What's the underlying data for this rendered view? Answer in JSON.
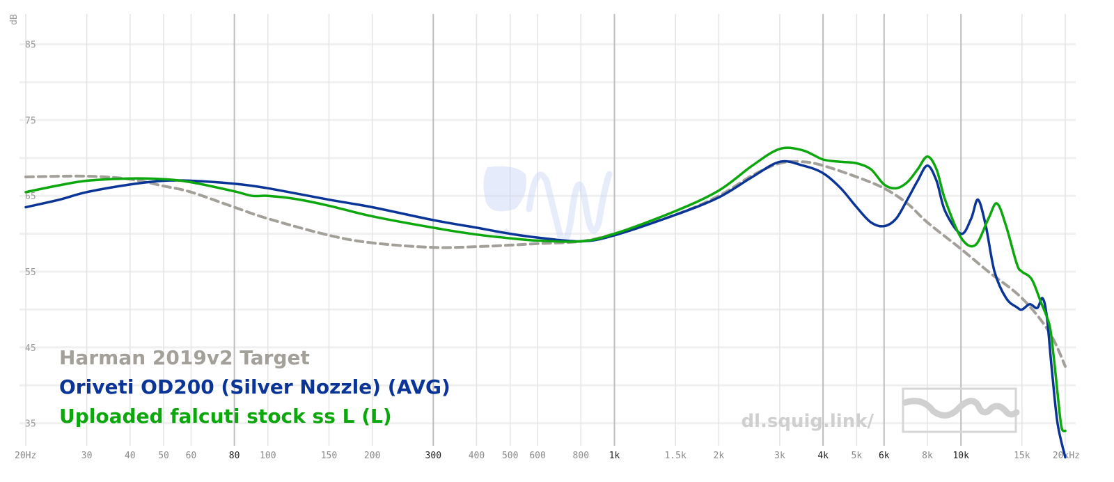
{
  "chart_data": {
    "type": "line",
    "x_scale": "log",
    "xlim": [
      20,
      20000
    ],
    "ylim": [
      30,
      88
    ],
    "ylabel": "dB",
    "grid": true,
    "legend_position": "bottom-left",
    "y_ticks": [
      85,
      75,
      65,
      55,
      45,
      35
    ],
    "x_ticks": [
      {
        "v": 20,
        "label": "20Hz",
        "major": false
      },
      {
        "v": 30,
        "label": "30",
        "major": false
      },
      {
        "v": 40,
        "label": "40",
        "major": false
      },
      {
        "v": 50,
        "label": "50",
        "major": false
      },
      {
        "v": 60,
        "label": "60",
        "major": false
      },
      {
        "v": 80,
        "label": "80",
        "major": true
      },
      {
        "v": 100,
        "label": "100",
        "major": false
      },
      {
        "v": 150,
        "label": "150",
        "major": false
      },
      {
        "v": 200,
        "label": "200",
        "major": false
      },
      {
        "v": 300,
        "label": "300",
        "major": true
      },
      {
        "v": 400,
        "label": "400",
        "major": false
      },
      {
        "v": 500,
        "label": "500",
        "major": false
      },
      {
        "v": 600,
        "label": "600",
        "major": false
      },
      {
        "v": 800,
        "label": "800",
        "major": false
      },
      {
        "v": 1000,
        "label": "1k",
        "major": true
      },
      {
        "v": 1500,
        "label": "1.5k",
        "major": false
      },
      {
        "v": 2000,
        "label": "2k",
        "major": false
      },
      {
        "v": 3000,
        "label": "3k",
        "major": false
      },
      {
        "v": 4000,
        "label": "4k",
        "major": true
      },
      {
        "v": 5000,
        "label": "5k",
        "major": false
      },
      {
        "v": 6000,
        "label": "6k",
        "major": true
      },
      {
        "v": 8000,
        "label": "8k",
        "major": false
      },
      {
        "v": 10000,
        "label": "10k",
        "major": true
      },
      {
        "v": 15000,
        "label": "15k",
        "major": false
      },
      {
        "v": 20000,
        "label": "20kHz",
        "major": false
      }
    ],
    "series": [
      {
        "name": "Harman 2019v2 Target",
        "color": "#a39f99",
        "dashed": true,
        "x": [
          20,
          30,
          40,
          50,
          60,
          80,
          100,
          150,
          200,
          300,
          400,
          500,
          600,
          800,
          1000,
          1500,
          2000,
          2500,
          3000,
          3500,
          4000,
          5000,
          6000,
          7000,
          8000,
          10000,
          12000,
          15000,
          18000,
          20000
        ],
        "y": [
          67.5,
          67.6,
          67.2,
          66.3,
          65.5,
          63.5,
          62.0,
          59.8,
          58.8,
          58.2,
          58.3,
          58.5,
          58.7,
          59.0,
          60.0,
          62.5,
          65.0,
          67.7,
          69.3,
          69.5,
          69.0,
          67.5,
          66.0,
          64.0,
          61.5,
          58.0,
          55.0,
          51.5,
          47.0,
          42.5
        ]
      },
      {
        "name": "Oriveti OD200 (Silver Nozzle) (AVG)",
        "color": "#0a3597",
        "dashed": false,
        "x": [
          20,
          25,
          30,
          40,
          50,
          60,
          80,
          100,
          150,
          200,
          300,
          400,
          500,
          600,
          800,
          1000,
          1500,
          2000,
          2500,
          3000,
          3500,
          4000,
          4500,
          5000,
          5500,
          6000,
          6500,
          7000,
          7500,
          8000,
          8500,
          9000,
          10000,
          10700,
          11200,
          11800,
          12500,
          13500,
          14500,
          15000,
          15800,
          16600,
          17200,
          17700,
          18300,
          19000,
          20000
        ],
        "y": [
          63.5,
          64.5,
          65.5,
          66.5,
          67.0,
          67.0,
          66.6,
          66.0,
          64.5,
          63.5,
          61.8,
          60.8,
          60.0,
          59.5,
          59.0,
          59.8,
          62.5,
          64.8,
          67.5,
          69.5,
          69.0,
          68.0,
          66.0,
          63.5,
          61.5,
          61.0,
          62.0,
          64.5,
          67.0,
          69.0,
          67.0,
          63.0,
          60.0,
          62.0,
          64.5,
          61.0,
          55.0,
          51.5,
          50.3,
          50.0,
          50.7,
          50.2,
          51.5,
          49.0,
          42.0,
          35.0,
          30.5
        ]
      },
      {
        "name": "Uploaded falcuti stock ss L (L)",
        "color": "#0ca70c",
        "dashed": false,
        "x": [
          20,
          25,
          30,
          40,
          50,
          60,
          80,
          90,
          100,
          120,
          150,
          200,
          300,
          400,
          500,
          600,
          800,
          1000,
          1500,
          2000,
          2500,
          3000,
          3500,
          4000,
          4500,
          5000,
          5500,
          6000,
          6500,
          7000,
          7500,
          8000,
          8500,
          9000,
          10000,
          11000,
          12000,
          12700,
          13500,
          14500,
          15000,
          16000,
          17000,
          18000,
          18500,
          19000,
          19500,
          20000
        ],
        "y": [
          65.5,
          66.4,
          67.0,
          67.3,
          67.2,
          66.8,
          65.6,
          65.0,
          65.0,
          64.6,
          63.7,
          62.3,
          60.8,
          59.9,
          59.4,
          59.1,
          59.0,
          60.0,
          63.0,
          65.7,
          69.0,
          71.2,
          71.0,
          69.8,
          69.5,
          69.3,
          68.5,
          66.5,
          66.0,
          66.8,
          68.5,
          70.2,
          68.5,
          64.5,
          59.5,
          58.5,
          62.0,
          64.0,
          61.0,
          56.0,
          55.0,
          54.0,
          51.0,
          48.0,
          44.0,
          39.0,
          34.5,
          34.0
        ]
      }
    ],
    "watermark": "dl.squig.link/"
  }
}
